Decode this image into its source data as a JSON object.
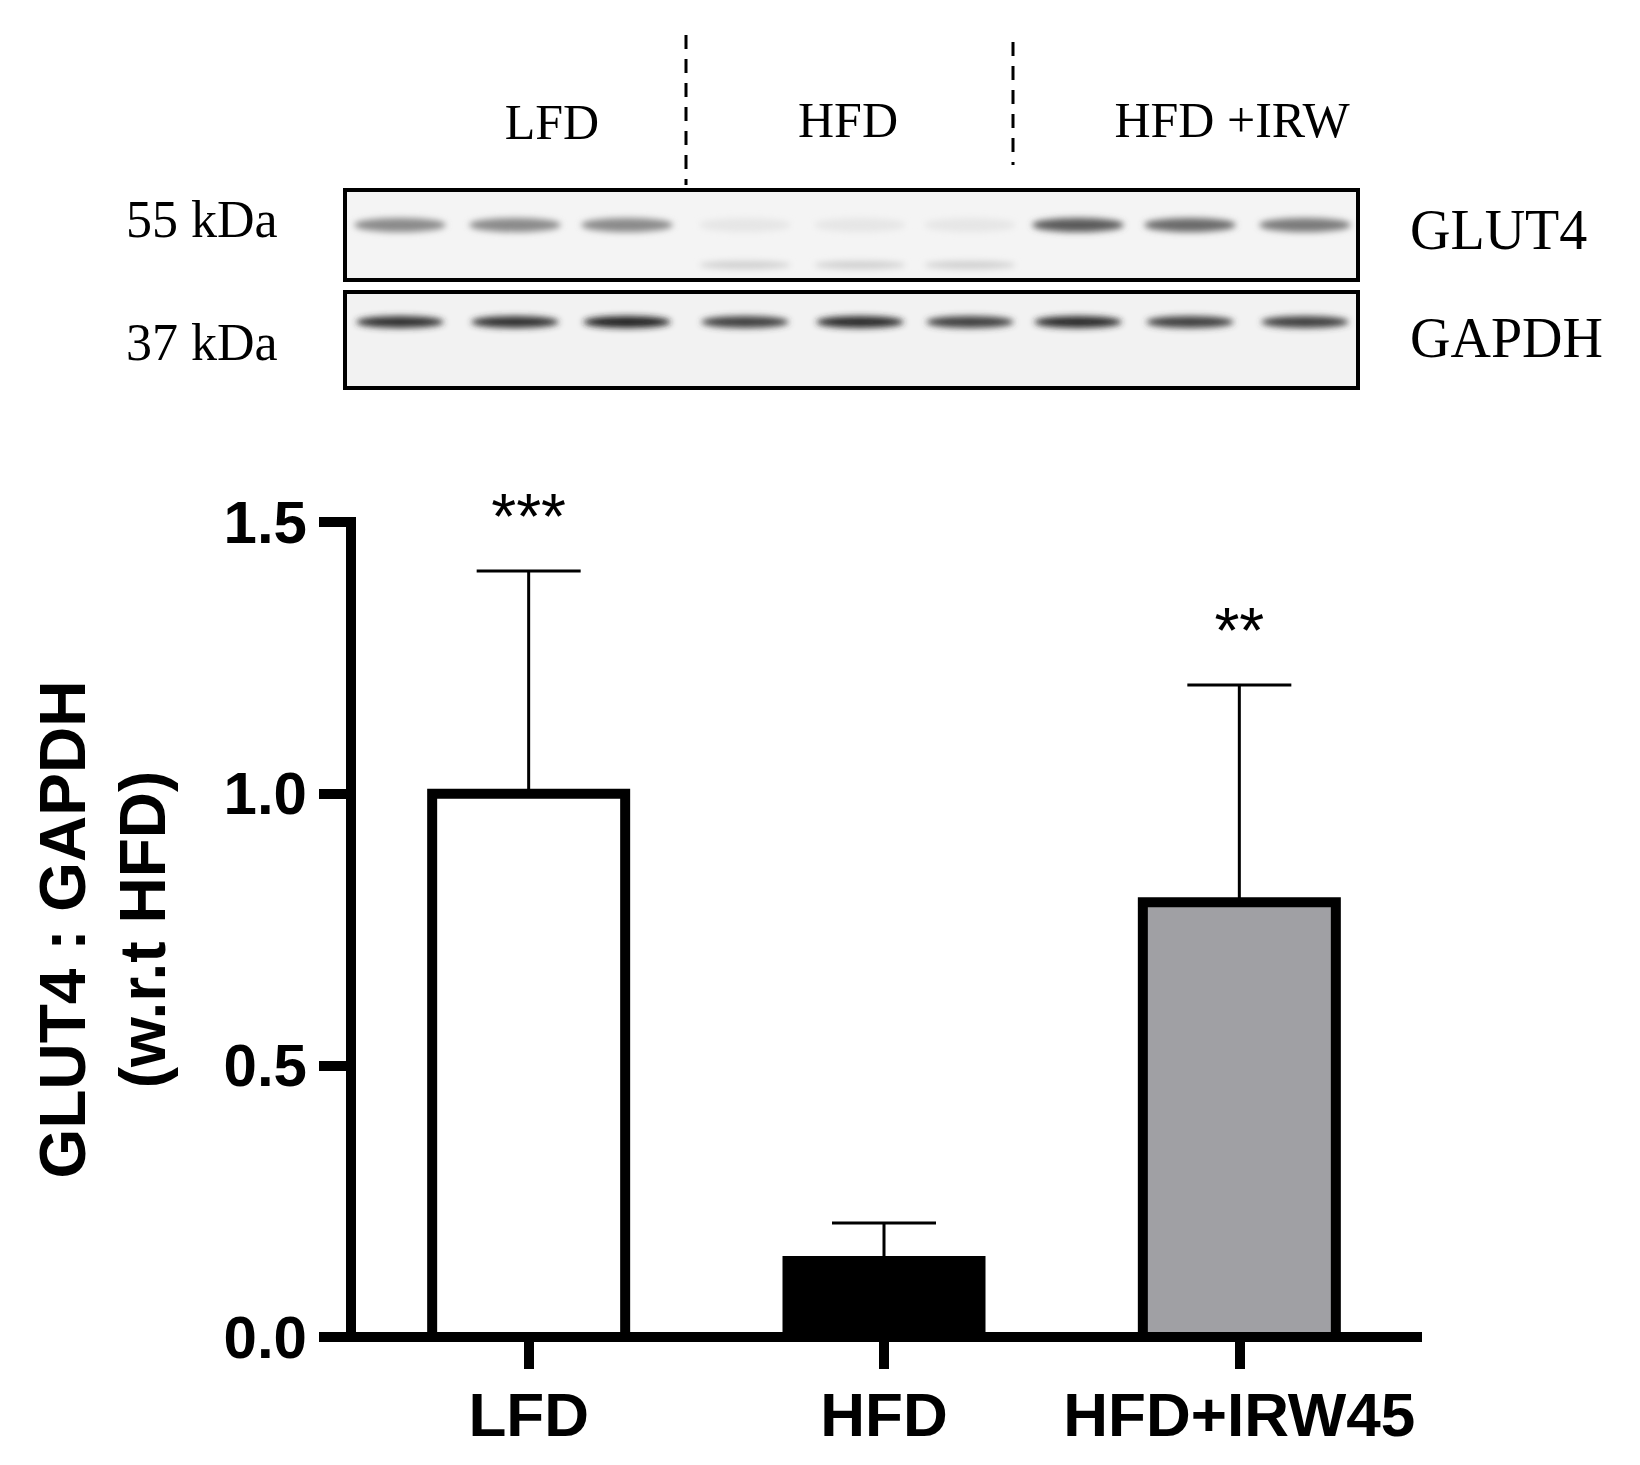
{
  "chart_data": {
    "type": "bar",
    "categories": [
      "LFD",
      "HFD",
      "HFD+IRW45"
    ],
    "values": [
      1.0,
      0.14,
      0.8
    ],
    "colors": [
      "#ffffff",
      "#000000",
      "#a0a0a4"
    ],
    "errors": [
      [
        1.0,
        1.41
      ],
      [
        0.14,
        0.21
      ],
      [
        0.8,
        1.2
      ]
    ],
    "ylabel": "GLUT4 : GAPDH\n(w.r.t HFD)",
    "ylim": [
      0,
      1.5
    ],
    "yticks": [
      {
        "value": 0,
        "label": "0.0"
      },
      0.5,
      {
        "value": 1,
        "label": "1.0"
      },
      1.5
    ],
    "annotations": [
      "LFD",
      "HFD",
      "HFD +IRW",
      "55 kDa",
      "37 kDa",
      "GLUT4",
      "GAPDH",
      "***",
      "**"
    ]
  }
}
